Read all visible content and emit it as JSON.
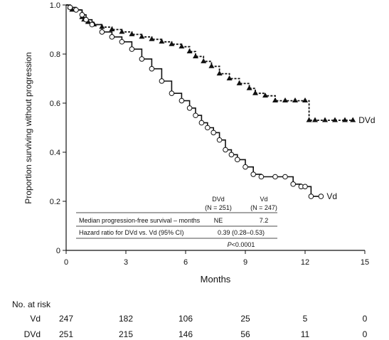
{
  "chart_data": {
    "type": "line",
    "xlabel": "Months",
    "ylabel": "Proportion surviving without progression",
    "xlim": [
      0,
      15
    ],
    "ylim": [
      0,
      1.0
    ],
    "xticks": [
      "0",
      "3",
      "6",
      "9",
      "12",
      "15"
    ],
    "yticks": [
      "0",
      "0.2",
      "0.4",
      "0.6",
      "0.8",
      "1.0"
    ],
    "grid": false,
    "series": [
      {
        "name": "DVd",
        "style": "dashed",
        "marker": "triangle",
        "x": [
          0,
          0.2,
          0.3,
          0.8,
          0.9,
          1.1,
          1.4,
          1.8,
          2.3,
          2.8,
          3.3,
          3.8,
          4.3,
          4.8,
          5.3,
          5.8,
          6.2,
          6.5,
          6.9,
          7.3,
          7.7,
          8.2,
          8.7,
          9.2,
          9.5,
          10.0,
          10.5,
          11.0,
          11.5,
          12.0,
          12.2,
          12.5,
          13.0,
          13.5,
          14.0,
          14.4
        ],
        "y": [
          1.0,
          0.99,
          0.98,
          0.95,
          0.94,
          0.93,
          0.92,
          0.91,
          0.9,
          0.89,
          0.88,
          0.87,
          0.86,
          0.85,
          0.84,
          0.83,
          0.81,
          0.79,
          0.77,
          0.75,
          0.72,
          0.7,
          0.68,
          0.66,
          0.64,
          0.63,
          0.61,
          0.61,
          0.61,
          0.61,
          0.53,
          0.53,
          0.53,
          0.53,
          0.53,
          0.53
        ]
      },
      {
        "name": "Vd",
        "style": "solid",
        "marker": "circle",
        "x": [
          0,
          0.2,
          0.5,
          0.8,
          1.0,
          1.3,
          1.8,
          2.3,
          2.8,
          3.3,
          3.8,
          4.3,
          4.8,
          5.3,
          5.8,
          6.2,
          6.5,
          6.8,
          7.1,
          7.4,
          7.7,
          8.0,
          8.3,
          8.6,
          9.0,
          9.4,
          9.8,
          10.5,
          11.0,
          11.4,
          11.8,
          12.0,
          12.3,
          12.8
        ],
        "y": [
          1.0,
          0.99,
          0.98,
          0.96,
          0.94,
          0.92,
          0.89,
          0.87,
          0.85,
          0.82,
          0.78,
          0.74,
          0.69,
          0.64,
          0.61,
          0.58,
          0.55,
          0.52,
          0.5,
          0.48,
          0.45,
          0.41,
          0.39,
          0.37,
          0.34,
          0.31,
          0.3,
          0.3,
          0.3,
          0.27,
          0.26,
          0.26,
          0.22,
          0.22
        ]
      }
    ],
    "annotation_table": {
      "col1_header": "DVd",
      "col1_sub": "(N = 251)",
      "col2_header": "Vd",
      "col2_sub": "(N = 247)",
      "row1_label": "Median progression-free survival – months",
      "row1_col1": "NE",
      "row1_col2": "7.2",
      "row2_label": "Hazard ratio for DVd vs. Vd (95% CI)",
      "row2_value": "0.39 (0.28–0.53)",
      "p_label": "P",
      "p_value": "<0.0001"
    }
  },
  "risk_table": {
    "title": "No. at risk",
    "months": [
      0,
      3,
      6,
      9,
      12,
      15
    ],
    "rows": [
      {
        "label": "Vd",
        "values": [
          "247",
          "182",
          "106",
          "25",
          "5",
          "0"
        ]
      },
      {
        "label": "DVd",
        "values": [
          "251",
          "215",
          "146",
          "56",
          "11",
          "0"
        ]
      }
    ]
  }
}
